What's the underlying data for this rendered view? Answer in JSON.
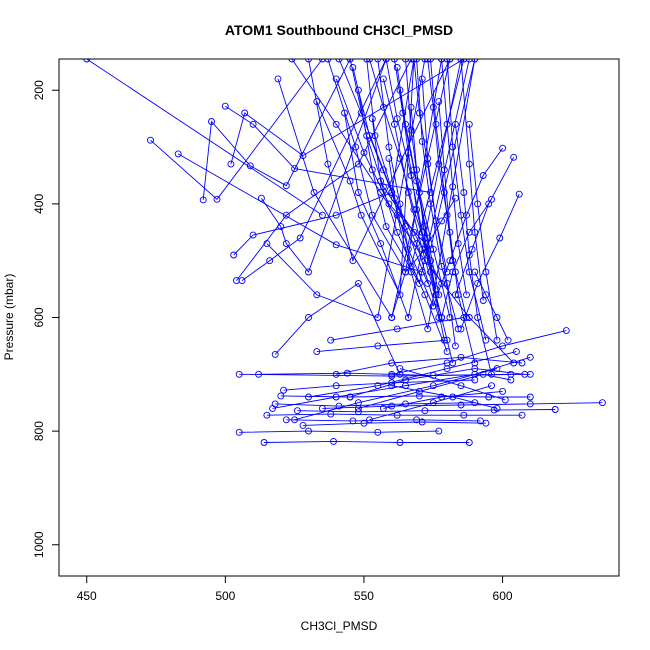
{
  "chart_data": {
    "type": "line",
    "title": "ATOM1 Southbound CH3Cl_PMSD",
    "xlabel": "CH3Cl_PMSD",
    "ylabel": "Pressure (mbar)",
    "xlim": [
      440,
      642
    ],
    "ylim": [
      1055,
      145
    ],
    "y_reversed": true,
    "xticks": [
      450,
      500,
      550,
      600
    ],
    "yticks": [
      200,
      400,
      600,
      800,
      1000
    ],
    "grid": false,
    "legend": "none",
    "line_color": "#0000ff",
    "marker": "open-circle",
    "series": [
      {
        "x": [
          450,
          535
        ],
        "y": [
          145,
          420
        ]
      },
      {
        "x": [
          473,
          497,
          535
        ],
        "y": [
          288,
          392,
          145
        ]
      },
      {
        "x": [
          483,
          540,
          571
        ],
        "y": [
          312,
          472,
          520
        ]
      },
      {
        "x": [
          492,
          495,
          509,
          522,
          545
        ],
        "y": [
          393,
          255,
          333,
          368,
          145
        ]
      },
      {
        "x": [
          500,
          510,
          525,
          574
        ],
        "y": [
          228,
          260,
          338,
          380
        ]
      },
      {
        "x": [
          502,
          507,
          528,
          586
        ],
        "y": [
          330,
          240,
          315,
          145
        ]
      },
      {
        "x": [
          503,
          510,
          540,
          560,
          568
        ],
        "y": [
          490,
          455,
          420,
          380,
          145
        ]
      },
      {
        "x": [
          504,
          522,
          548,
          567
        ],
        "y": [
          535,
          420,
          330,
          145
        ]
      },
      {
        "x": [
          506,
          516,
          527,
          558
        ],
        "y": [
          535,
          500,
          460,
          145
        ]
      },
      {
        "x": [
          513,
          520,
          522,
          530,
          558
        ],
        "y": [
          390,
          440,
          470,
          520,
          145
        ]
      },
      {
        "x": [
          515,
          533,
          555,
          572
        ],
        "y": [
          470,
          560,
          600,
          145
        ]
      },
      {
        "x": [
          519,
          532,
          560,
          581
        ],
        "y": [
          180,
          380,
          600,
          145
        ]
      },
      {
        "x": [
          518,
          530,
          548,
          563
        ],
        "y": [
          665,
          600,
          540,
          700
        ]
      },
      {
        "x": [
          530,
          537,
          546,
          581
        ],
        "y": [
          145,
          330,
          500,
          145
        ]
      },
      {
        "x": [
          533,
          545,
          549,
          563,
          568
        ],
        "y": [
          220,
          360,
          420,
          560,
          145
        ]
      },
      {
        "x": [
          537,
          547,
          553,
          565,
          578
        ],
        "y": [
          145,
          300,
          420,
          520,
          145
        ]
      },
      {
        "x": [
          540,
          550,
          559,
          574,
          590
        ],
        "y": [
          180,
          310,
          400,
          480,
          145
        ]
      },
      {
        "x": [
          543,
          548,
          556,
          566,
          585
        ],
        "y": [
          240,
          380,
          470,
          600,
          145
        ]
      },
      {
        "x": [
          545,
          551,
          557,
          568,
          578
        ],
        "y": [
          145,
          280,
          370,
          450,
          540
        ]
      },
      {
        "x": [
          548,
          553,
          558,
          570,
          588
        ],
        "y": [
          200,
          340,
          440,
          540,
          145
        ]
      },
      {
        "x": [
          551,
          554,
          561,
          569,
          577
        ],
        "y": [
          145,
          280,
          390,
          470,
          600
        ]
      },
      {
        "x": [
          553,
          556,
          562,
          572,
          580
        ],
        "y": [
          250,
          360,
          450,
          560,
          660
        ]
      },
      {
        "x": [
          555,
          559,
          563,
          567,
          586
        ],
        "y": [
          145,
          300,
          400,
          510,
          145
        ]
      },
      {
        "x": [
          557,
          561,
          566,
          571,
          578
        ],
        "y": [
          180,
          260,
          380,
          480,
          600
        ]
      },
      {
        "x": [
          559,
          562,
          567,
          573,
          590
        ],
        "y": [
          320,
          420,
          520,
          620,
          145
        ]
      },
      {
        "x": [
          561,
          564,
          568,
          572,
          576
        ],
        "y": [
          145,
          240,
          340,
          440,
          560
        ]
      },
      {
        "x": [
          563,
          566,
          569,
          574,
          579
        ],
        "y": [
          200,
          310,
          410,
          520,
          640
        ]
      },
      {
        "x": [
          565,
          567,
          570,
          575,
          581
        ],
        "y": [
          145,
          270,
          380,
          480,
          600
        ]
      },
      {
        "x": [
          567,
          569,
          572,
          576,
          582
        ],
        "y": [
          230,
          340,
          460,
          560,
          680
        ]
      },
      {
        "x": [
          569,
          571,
          574,
          578,
          584
        ],
        "y": [
          145,
          290,
          400,
          510,
          620
        ]
      },
      {
        "x": [
          571,
          573,
          576,
          580,
          583
        ],
        "y": [
          180,
          320,
          430,
          540,
          650
        ]
      },
      {
        "x": [
          574,
          576,
          579,
          582,
          587
        ],
        "y": [
          145,
          260,
          380,
          500,
          600
        ]
      },
      {
        "x": [
          577,
          579,
          581,
          584,
          590
        ],
        "y": [
          220,
          340,
          450,
          560,
          680
        ]
      },
      {
        "x": [
          580,
          582,
          585,
          588,
          594
        ],
        "y": [
          145,
          300,
          420,
          520,
          640
        ]
      },
      {
        "x": [
          583,
          586,
          588,
          591,
          596
        ],
        "y": [
          260,
          380,
          490,
          600,
          700
        ]
      },
      {
        "x": [
          585,
          588,
          590,
          593
        ],
        "y": [
          145,
          330,
          450,
          570
        ]
      },
      {
        "x": [
          588,
          591,
          594,
          598
        ],
        "y": [
          260,
          400,
          520,
          640
        ]
      },
      {
        "x": [
          600,
          593,
          587,
          581,
          575
        ],
        "y": [
          302,
          350,
          420,
          500,
          580
        ]
      },
      {
        "x": [
          604,
          595,
          589,
          583
        ],
        "y": [
          318,
          400,
          480,
          560
        ]
      },
      {
        "x": [
          606,
          599,
          591,
          585
        ],
        "y": [
          383,
          460,
          540,
          620
        ]
      },
      {
        "x": [
          596,
          588,
          582,
          578
        ],
        "y": [
          392,
          450,
          520,
          600
        ]
      },
      {
        "x": [
          583,
          578,
          572,
          565,
          560
        ],
        "y": [
          390,
          430,
          480,
          520,
          600
        ]
      },
      {
        "x": [
          524,
          540,
          556,
          572,
          588,
          604
        ],
        "y": [
          145,
          260,
          380,
          500,
          600,
          680
        ]
      },
      {
        "x": [
          541,
          549,
          557,
          565,
          573
        ],
        "y": [
          145,
          240,
          340,
          440,
          540
        ]
      },
      {
        "x": [
          546,
          552,
          560,
          566,
          575
        ],
        "y": [
          160,
          280,
          380,
          480,
          580
        ]
      },
      {
        "x": [
          552,
          557,
          563,
          568,
          574
        ],
        "y": [
          145,
          230,
          320,
          410,
          500
        ]
      },
      {
        "x": [
          558,
          562,
          567,
          571,
          576
        ],
        "y": [
          145,
          250,
          350,
          450,
          550
        ]
      },
      {
        "x": [
          562,
          565,
          569,
          573,
          577
        ],
        "y": [
          160,
          260,
          360,
          460,
          560
        ]
      },
      {
        "x": [
          568,
          570,
          573,
          576,
          580
        ],
        "y": [
          145,
          240,
          330,
          430,
          520
        ]
      },
      {
        "x": [
          573,
          575,
          577,
          580,
          583
        ],
        "y": [
          145,
          230,
          330,
          420,
          520
        ]
      },
      {
        "x": [
          578,
          580,
          582,
          584,
          587
        ],
        "y": [
          145,
          260,
          370,
          470,
          560
        ]
      },
      {
        "x": [
          590,
          594,
          598,
          602
        ],
        "y": [
          520,
          560,
          600,
          640
        ]
      },
      {
        "x": [
          623,
          600,
          580,
          560
        ],
        "y": [
          623,
          650,
          680,
          700
        ]
      },
      {
        "x": [
          505,
          560,
          610
        ],
        "y": [
          700,
          703,
          700
        ]
      },
      {
        "x": [
          512,
          544,
          575,
          603
        ],
        "y": [
          700,
          698,
          702,
          700
        ]
      },
      {
        "x": [
          521,
          540,
          560,
          590
        ],
        "y": [
          728,
          720,
          715,
          710
        ]
      },
      {
        "x": [
          520,
          545,
          570,
          595,
          610
        ],
        "y": [
          738,
          740,
          738,
          740,
          740
        ]
      },
      {
        "x": [
          518,
          541,
          565,
          590
        ],
        "y": [
          752,
          756,
          752,
          750
        ]
      },
      {
        "x": [
          535,
          560,
          585,
          610,
          636
        ],
        "y": [
          760,
          756,
          754,
          752,
          750
        ]
      },
      {
        "x": [
          526,
          548,
          572,
          597,
          619
        ],
        "y": [
          764,
          766,
          764,
          763,
          762
        ]
      },
      {
        "x": [
          515,
          538,
          562,
          586,
          607
        ],
        "y": [
          772,
          770,
          772,
          772,
          772
        ]
      },
      {
        "x": [
          522,
          546,
          569,
          592
        ],
        "y": [
          780,
          782,
          780,
          782
        ]
      },
      {
        "x": [
          528,
          550,
          571,
          594
        ],
        "y": [
          790,
          786,
          784,
          786
        ]
      },
      {
        "x": [
          505,
          530,
          555,
          577
        ],
        "y": [
          802,
          800,
          802,
          800
        ]
      },
      {
        "x": [
          514,
          539,
          563,
          588
        ],
        "y": [
          820,
          818,
          820,
          820
        ]
      },
      {
        "x": [
          517,
          540,
          565,
          590,
          610
        ],
        "y": [
          760,
          740,
          720,
          700,
          670
        ]
      },
      {
        "x": [
          525,
          548,
          575,
          598
        ],
        "y": [
          780,
          750,
          720,
          690
        ]
      },
      {
        "x": [
          530,
          555,
          580,
          605
        ],
        "y": [
          740,
          720,
          690,
          660
        ]
      },
      {
        "x": [
          540,
          560,
          585,
          607
        ],
        "y": [
          700,
          680,
          670,
          680
        ]
      },
      {
        "x": [
          545,
          565,
          590,
          608
        ],
        "y": [
          740,
          710,
          690,
          700
        ]
      },
      {
        "x": [
          548,
          570,
          593,
          603
        ],
        "y": [
          760,
          730,
          700,
          710
        ]
      },
      {
        "x": [
          552,
          575,
          596
        ],
        "y": [
          780,
          750,
          720
        ]
      },
      {
        "x": [
          557,
          578,
          600
        ],
        "y": [
          760,
          740,
          730
        ]
      },
      {
        "x": [
          560,
          582,
          598
        ],
        "y": [
          720,
          740,
          760
        ]
      },
      {
        "x": [
          563,
          585,
          601
        ],
        "y": [
          690,
          720,
          745
        ]
      },
      {
        "x": [
          533,
          555,
          580
        ],
        "y": [
          660,
          650,
          640
        ]
      },
      {
        "x": [
          538,
          562,
          586
        ],
        "y": [
          640,
          620,
          600
        ]
      }
    ]
  }
}
